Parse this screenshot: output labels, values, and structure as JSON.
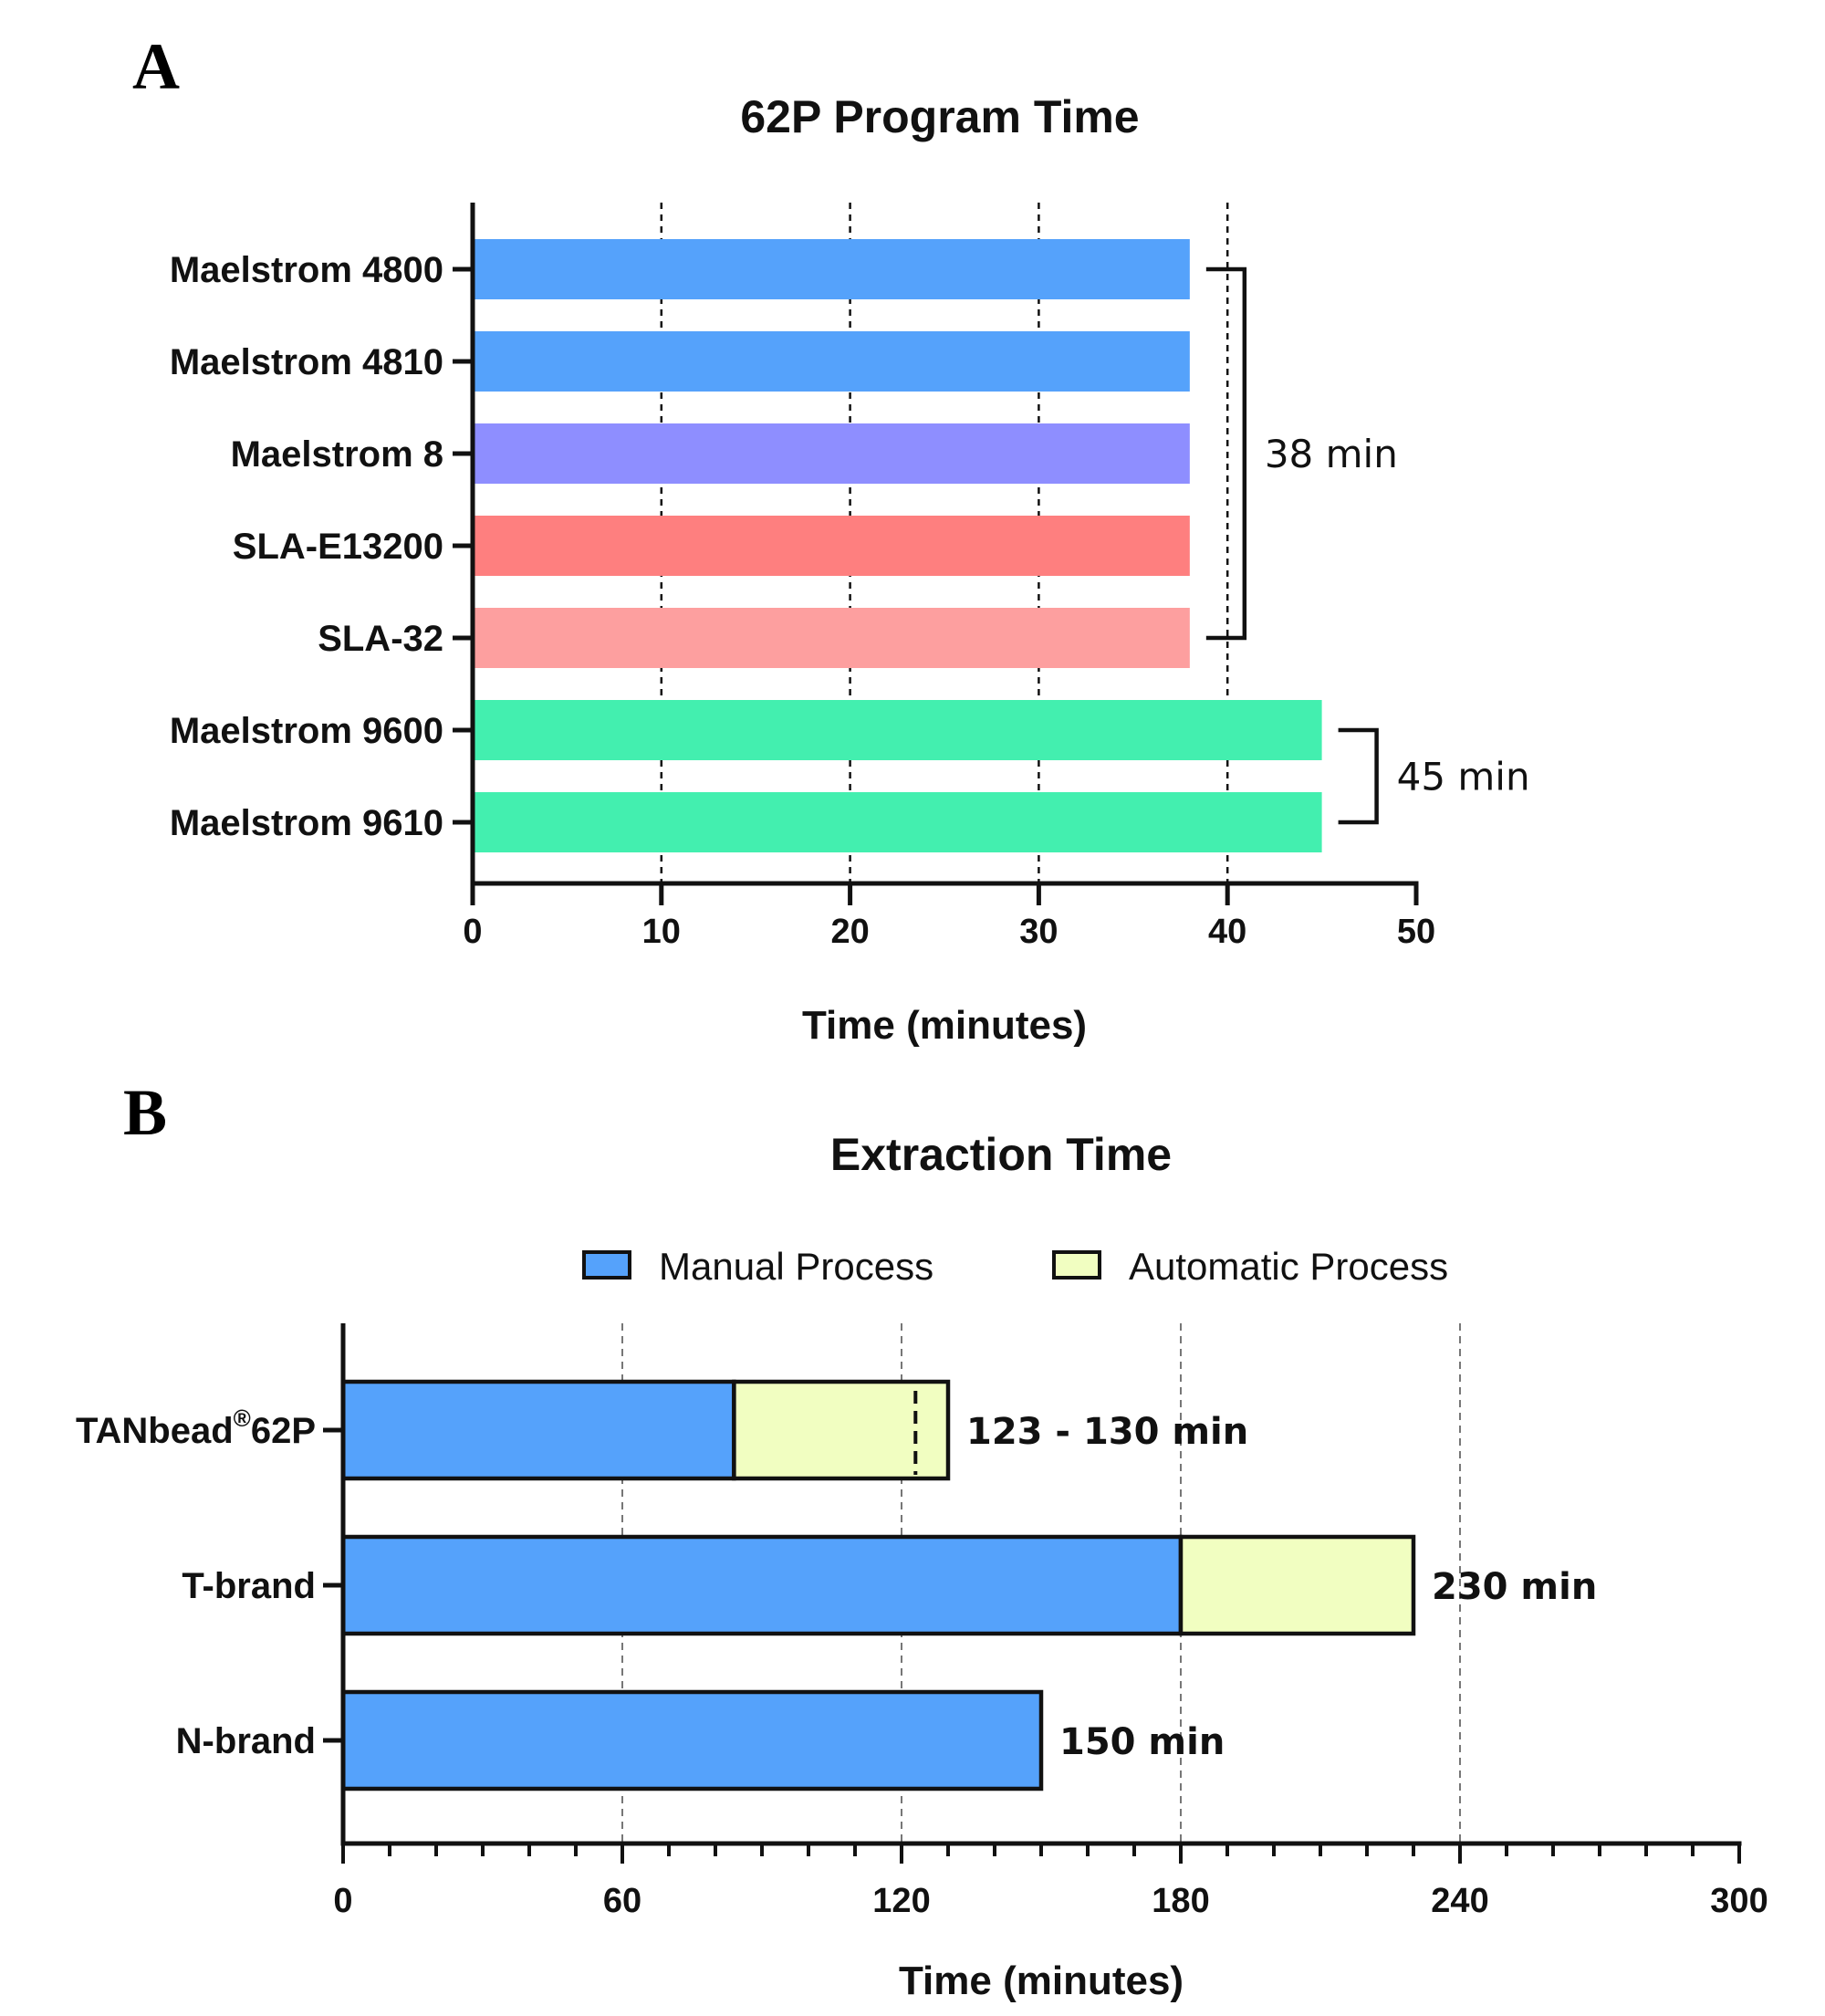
{
  "chart_data": [
    {
      "panel": "A",
      "type": "bar",
      "orientation": "horizontal",
      "title": "62P Program Time",
      "xlabel": "Time (minutes)",
      "ylabel": "",
      "xlim": [
        0,
        50
      ],
      "xticks": [
        0,
        10,
        20,
        30,
        40,
        50
      ],
      "grid": "vertical dotted lines at 10, 20, 30, 40",
      "categories": [
        "Maelstrom 4800",
        "Maelstrom 4810",
        "Maelstrom 8",
        "SLA-E13200",
        "SLA-32",
        "Maelstrom 9600",
        "Maelstrom 9610"
      ],
      "values": [
        38,
        38,
        38,
        38,
        38,
        45,
        45
      ],
      "colors": [
        "#55a2fb",
        "#55a2fb",
        "#8e8eff",
        "#fe7f7f",
        "#fd9f9f",
        "#43efaf",
        "#43efaf"
      ],
      "annotations": [
        {
          "text": "38 min",
          "brackets_categories": [
            "Maelstrom 4800",
            "SLA-32"
          ]
        },
        {
          "text": "45 min",
          "brackets_categories": [
            "Maelstrom 9600",
            "Maelstrom 9610"
          ]
        }
      ]
    },
    {
      "panel": "B",
      "type": "bar",
      "orientation": "horizontal",
      "stacked": true,
      "title": "Extraction Time",
      "xlabel": "Time (minutes)",
      "ylabel": "",
      "xlim": [
        0,
        300
      ],
      "xticks": [
        0,
        60,
        120,
        180,
        240,
        300
      ],
      "grid": "vertical dashed lines at 60, 120, 180, 240",
      "legend": "top-center",
      "categories": [
        {
          "main": "TANbead",
          "sup": "®",
          "tail": "62P"
        },
        {
          "main": "T-brand",
          "sup": "",
          "tail": ""
        },
        {
          "main": "N-brand",
          "sup": "",
          "tail": ""
        }
      ],
      "series": [
        {
          "name": "Manual Process",
          "color": "#55a2fb",
          "values": [
            84,
            180,
            150
          ]
        },
        {
          "name": "Automatic Process",
          "color": "#f1fec1",
          "values": [
            46,
            50,
            0
          ]
        }
      ],
      "inner_markers": [
        {
          "category_index": 0,
          "x": 123,
          "style": "dashed"
        }
      ],
      "annotations": [
        {
          "category_index": 0,
          "text": "123 - 130 min"
        },
        {
          "category_index": 1,
          "text": "230 min"
        },
        {
          "category_index": 2,
          "text": "150 min"
        }
      ]
    }
  ]
}
